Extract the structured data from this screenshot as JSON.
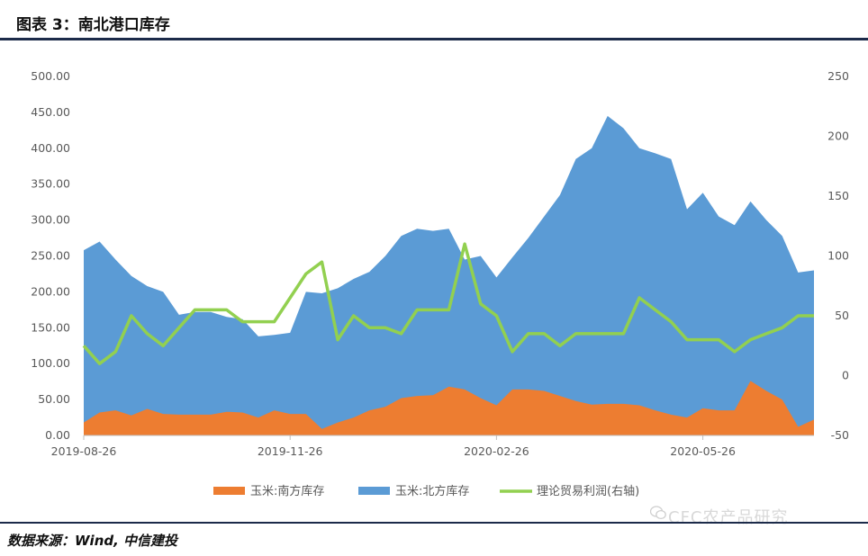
{
  "header": {
    "title": "图表 3：南北港口库存"
  },
  "footer": {
    "source": "数据来源：Wind, 中信建投",
    "watermark": "CFC农产品研究"
  },
  "colors": {
    "south": "#ED7D31",
    "north": "#5B9BD5",
    "profit": "#92D050",
    "rule": "#1c2b4a"
  },
  "chart_data": {
    "type": "area",
    "title": "",
    "x_tick_labels": [
      "2019-08-26",
      "2019-11-26",
      "2020-02-26",
      "2020-05-26"
    ],
    "x_tick_index": [
      0,
      13,
      26,
      39
    ],
    "y_left_ticks": [
      "500.00",
      "450.00",
      "400.00",
      "350.00",
      "300.00",
      "250.00",
      "200.00",
      "150.00",
      "100.00",
      "50.00",
      "0.00"
    ],
    "y_right_ticks": [
      "250",
      "200",
      "150",
      "100",
      "50",
      "0",
      "-50"
    ],
    "ylim_left": [
      0,
      500
    ],
    "ylim_right": [
      -50,
      250
    ],
    "legend_position": "bottom",
    "series": [
      {
        "name": "玉米:南方库存",
        "axis": "left",
        "kind": "area",
        "values": [
          18,
          32,
          35,
          28,
          37,
          30,
          29,
          29,
          29,
          33,
          32,
          25,
          35,
          30,
          30,
          9,
          18,
          25,
          35,
          40,
          52,
          55,
          56,
          68,
          64,
          52,
          42,
          64,
          64,
          62,
          55,
          48,
          43,
          44,
          44,
          42,
          35,
          29,
          25,
          38,
          35,
          35,
          76,
          62,
          50,
          12,
          22
        ]
      },
      {
        "name": "玉米:北方库存",
        "axis": "left",
        "kind": "area",
        "values": [
          258,
          270,
          245,
          222,
          208,
          200,
          168,
          172,
          172,
          165,
          162,
          138,
          140,
          143,
          200,
          198,
          205,
          218,
          228,
          250,
          278,
          288,
          285,
          288,
          245,
          250,
          220,
          248,
          275,
          305,
          335,
          385,
          400,
          445,
          428,
          400,
          393,
          385,
          315,
          338,
          305,
          293,
          326,
          300,
          278,
          227,
          230
        ]
      },
      {
        "name": "理论贸易利润(右轴)",
        "axis": "right",
        "kind": "line",
        "values": [
          25,
          10,
          20,
          50,
          35,
          25,
          40,
          55,
          55,
          55,
          45,
          45,
          45,
          65,
          85,
          95,
          30,
          50,
          40,
          40,
          35,
          55,
          55,
          55,
          110,
          60,
          50,
          20,
          35,
          35,
          25,
          35,
          35,
          35,
          35,
          65,
          55,
          45,
          30,
          30,
          30,
          20,
          30,
          35,
          40,
          50,
          50
        ]
      }
    ]
  }
}
